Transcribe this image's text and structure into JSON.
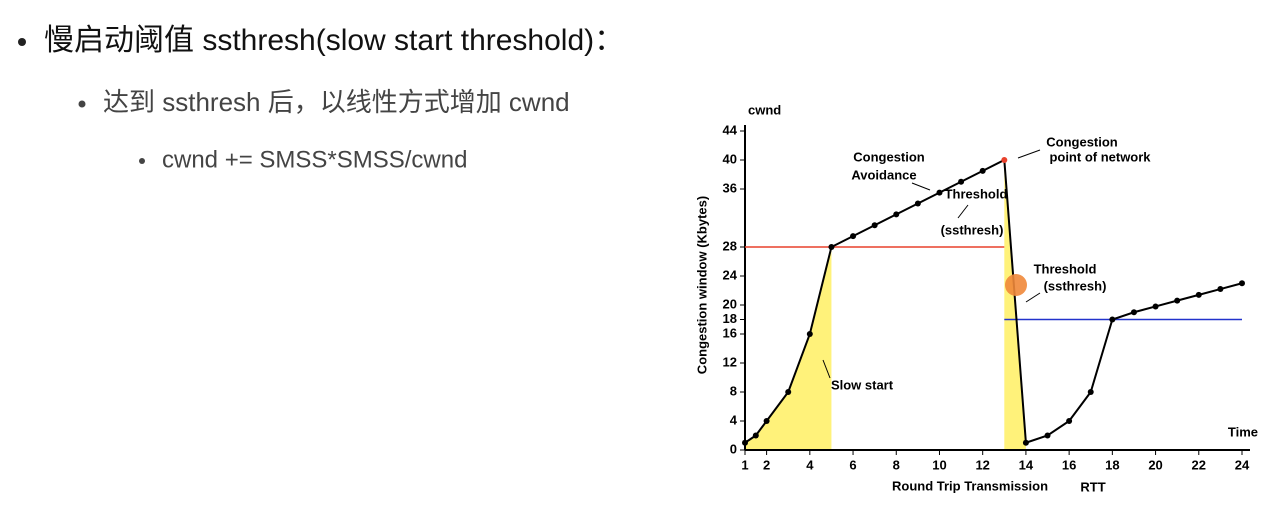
{
  "bullets": [
    "慢启动阈值 ssthresh(slow start threshold)：",
    "达到 ssthresh 后，以线性方式增加 cwnd",
    "cwnd += SMSS*SMSS/cwnd"
  ],
  "chart_data": {
    "type": "line",
    "y_axis_title": "cwnd",
    "y_label": "Congestion window (Kbytes)",
    "x_label": "Round Trip Transmission",
    "x_unit": "RTT",
    "x_axis_title": "Time",
    "x": [
      1,
      1.5,
      2,
      3,
      4,
      5,
      6,
      7,
      8,
      9,
      10,
      11,
      12,
      13,
      14,
      15,
      16,
      17,
      18,
      19,
      20,
      21,
      22,
      23,
      24
    ],
    "series": [
      {
        "color": "#000000",
        "values": [
          1,
          2,
          4,
          8,
          16,
          28,
          29.5,
          31,
          32.5,
          34,
          35.5,
          37,
          38.5,
          40,
          1,
          2,
          4,
          8,
          18,
          19,
          19.8,
          20.6,
          21.4,
          22.2,
          23
        ]
      }
    ],
    "thresholds": [
      {
        "value": 28,
        "x": [
          1,
          13
        ],
        "color": "#e8412c"
      },
      {
        "value": 18,
        "x": [
          13,
          24
        ],
        "color": "#2233cc"
      }
    ],
    "annotations": [
      "Congestion",
      "Avoidance",
      "Threshold",
      "(ssthresh)",
      "Slow start",
      "Congestion",
      "point of network",
      "Threshold",
      "(ssthresh)"
    ],
    "xlim": [
      1,
      24
    ],
    "xticks": [
      1,
      2,
      4,
      6,
      8,
      10,
      12,
      14,
      16,
      18,
      20,
      22,
      24
    ],
    "ylim": [
      0,
      44
    ],
    "yticks": [
      0,
      4,
      8,
      12,
      16,
      18,
      20,
      24,
      28,
      36,
      40,
      44
    ]
  }
}
